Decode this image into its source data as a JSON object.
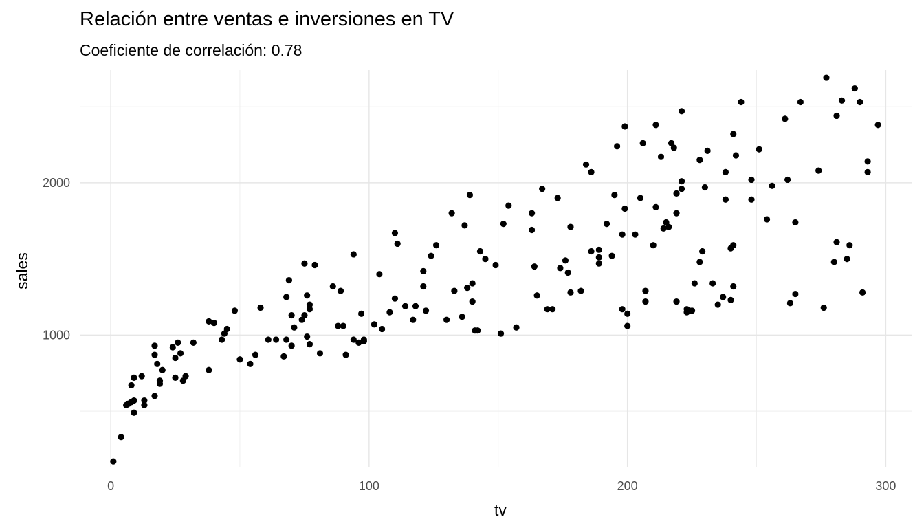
{
  "chart_data": {
    "type": "scatter",
    "title": "Relación entre ventas e inversiones en TV",
    "subtitle": "Coeficiente de correlación: 0.78",
    "xlabel": "tv",
    "ylabel": "sales",
    "xlim": [
      -12,
      310
    ],
    "ylim": [
      130,
      2740
    ],
    "x_ticks": [
      0,
      100,
      200,
      300
    ],
    "y_ticks": [
      1000,
      2000
    ],
    "x_tick_labels": [
      "0",
      "100",
      "200",
      "300"
    ],
    "y_tick_labels": [
      "1000",
      "2000"
    ],
    "grid": true,
    "point_color": "#000000",
    "points": [
      [
        1,
        170
      ],
      [
        4,
        330
      ],
      [
        6,
        540
      ],
      [
        7,
        550
      ],
      [
        8,
        560
      ],
      [
        8,
        670
      ],
      [
        9,
        490
      ],
      [
        9,
        570
      ],
      [
        9,
        720
      ],
      [
        12,
        730
      ],
      [
        13,
        540
      ],
      [
        13,
        570
      ],
      [
        17,
        600
      ],
      [
        17,
        870
      ],
      [
        17,
        930
      ],
      [
        18,
        810
      ],
      [
        19,
        680
      ],
      [
        19,
        700
      ],
      [
        20,
        770
      ],
      [
        24,
        920
      ],
      [
        25,
        720
      ],
      [
        25,
        850
      ],
      [
        26,
        950
      ],
      [
        27,
        880
      ],
      [
        28,
        700
      ],
      [
        29,
        730
      ],
      [
        32,
        950
      ],
      [
        38,
        1090
      ],
      [
        38,
        770
      ],
      [
        40,
        1080
      ],
      [
        43,
        970
      ],
      [
        44,
        1010
      ],
      [
        45,
        1040
      ],
      [
        48,
        1160
      ],
      [
        50,
        840
      ],
      [
        54,
        810
      ],
      [
        56,
        870
      ],
      [
        58,
        1180
      ],
      [
        61,
        970
      ],
      [
        64,
        970
      ],
      [
        67,
        860
      ],
      [
        68,
        970
      ],
      [
        68,
        1250
      ],
      [
        69,
        1360
      ],
      [
        70,
        930
      ],
      [
        70,
        1130
      ],
      [
        71,
        1050
      ],
      [
        74,
        1100
      ],
      [
        75,
        1470
      ],
      [
        75,
        1130
      ],
      [
        76,
        1260
      ],
      [
        76,
        990
      ],
      [
        77,
        940
      ],
      [
        77,
        1170
      ],
      [
        77,
        1200
      ],
      [
        79,
        1460
      ],
      [
        81,
        880
      ],
      [
        86,
        1320
      ],
      [
        88,
        1060
      ],
      [
        89,
        1290
      ],
      [
        90,
        1060
      ],
      [
        91,
        870
      ],
      [
        94,
        1530
      ],
      [
        94,
        970
      ],
      [
        96,
        950
      ],
      [
        97,
        1140
      ],
      [
        98,
        960
      ],
      [
        98,
        970
      ],
      [
        102,
        1070
      ],
      [
        104,
        1400
      ],
      [
        105,
        1040
      ],
      [
        108,
        1150
      ],
      [
        110,
        1240
      ],
      [
        110,
        1670
      ],
      [
        111,
        1600
      ],
      [
        114,
        1190
      ],
      [
        117,
        1100
      ],
      [
        118,
        1190
      ],
      [
        121,
        1320
      ],
      [
        121,
        1420
      ],
      [
        122,
        1160
      ],
      [
        124,
        1520
      ],
      [
        126,
        1590
      ],
      [
        130,
        1100
      ],
      [
        132,
        1800
      ],
      [
        133,
        1290
      ],
      [
        136,
        1120
      ],
      [
        137,
        1720
      ],
      [
        138,
        1310
      ],
      [
        139,
        1920
      ],
      [
        140,
        1340
      ],
      [
        140,
        1220
      ],
      [
        141,
        1030
      ],
      [
        142,
        1030
      ],
      [
        143,
        1550
      ],
      [
        145,
        1500
      ],
      [
        149,
        1460
      ],
      [
        151,
        1010
      ],
      [
        152,
        1730
      ],
      [
        154,
        1850
      ],
      [
        157,
        1050
      ],
      [
        163,
        1690
      ],
      [
        163,
        1800
      ],
      [
        164,
        1450
      ],
      [
        165,
        1260
      ],
      [
        167,
        1960
      ],
      [
        169,
        1170
      ],
      [
        171,
        1170
      ],
      [
        173,
        1900
      ],
      [
        174,
        1440
      ],
      [
        176,
        1490
      ],
      [
        177,
        1410
      ],
      [
        178,
        1280
      ],
      [
        178,
        1710
      ],
      [
        182,
        1290
      ],
      [
        184,
        2120
      ],
      [
        186,
        1550
      ],
      [
        186,
        2070
      ],
      [
        189,
        1510
      ],
      [
        189,
        1560
      ],
      [
        189,
        1470
      ],
      [
        192,
        1730
      ],
      [
        194,
        1520
      ],
      [
        195,
        1920
      ],
      [
        196,
        2240
      ],
      [
        198,
        1170
      ],
      [
        198,
        1660
      ],
      [
        199,
        2370
      ],
      [
        199,
        1830
      ],
      [
        200,
        1140
      ],
      [
        200,
        1060
      ],
      [
        203,
        1660
      ],
      [
        205,
        1900
      ],
      [
        206,
        2260
      ],
      [
        207,
        1220
      ],
      [
        207,
        1290
      ],
      [
        210,
        1590
      ],
      [
        211,
        1840
      ],
      [
        211,
        2380
      ],
      [
        213,
        2170
      ],
      [
        214,
        1700
      ],
      [
        215,
        1740
      ],
      [
        216,
        1710
      ],
      [
        217,
        2260
      ],
      [
        218,
        2230
      ],
      [
        219,
        1800
      ],
      [
        219,
        1220
      ],
      [
        219,
        1930
      ],
      [
        221,
        1960
      ],
      [
        221,
        2010
      ],
      [
        221,
        2470
      ],
      [
        223,
        1170
      ],
      [
        223,
        1150
      ],
      [
        224,
        1160
      ],
      [
        225,
        1160
      ],
      [
        226,
        1340
      ],
      [
        228,
        1480
      ],
      [
        228,
        2150
      ],
      [
        229,
        1550
      ],
      [
        230,
        1970
      ],
      [
        231,
        2210
      ],
      [
        233,
        1340
      ],
      [
        235,
        1200
      ],
      [
        237,
        1250
      ],
      [
        238,
        1890
      ],
      [
        238,
        2070
      ],
      [
        240,
        1570
      ],
      [
        240,
        1230
      ],
      [
        241,
        2320
      ],
      [
        241,
        1590
      ],
      [
        241,
        1320
      ],
      [
        242,
        2180
      ],
      [
        244,
        2530
      ],
      [
        248,
        1890
      ],
      [
        248,
        2020
      ],
      [
        251,
        2220
      ],
      [
        254,
        1760
      ],
      [
        256,
        1980
      ],
      [
        261,
        2420
      ],
      [
        262,
        2020
      ],
      [
        263,
        1210
      ],
      [
        265,
        1270
      ],
      [
        265,
        1740
      ],
      [
        267,
        2530
      ],
      [
        274,
        2080
      ],
      [
        276,
        1180
      ],
      [
        277,
        2690
      ],
      [
        280,
        1480
      ],
      [
        281,
        1610
      ],
      [
        281,
        2440
      ],
      [
        283,
        2540
      ],
      [
        285,
        1500
      ],
      [
        286,
        1590
      ],
      [
        288,
        2620
      ],
      [
        290,
        2530
      ],
      [
        291,
        1280
      ],
      [
        293,
        2140
      ],
      [
        293,
        2070
      ],
      [
        297,
        2380
      ]
    ]
  }
}
